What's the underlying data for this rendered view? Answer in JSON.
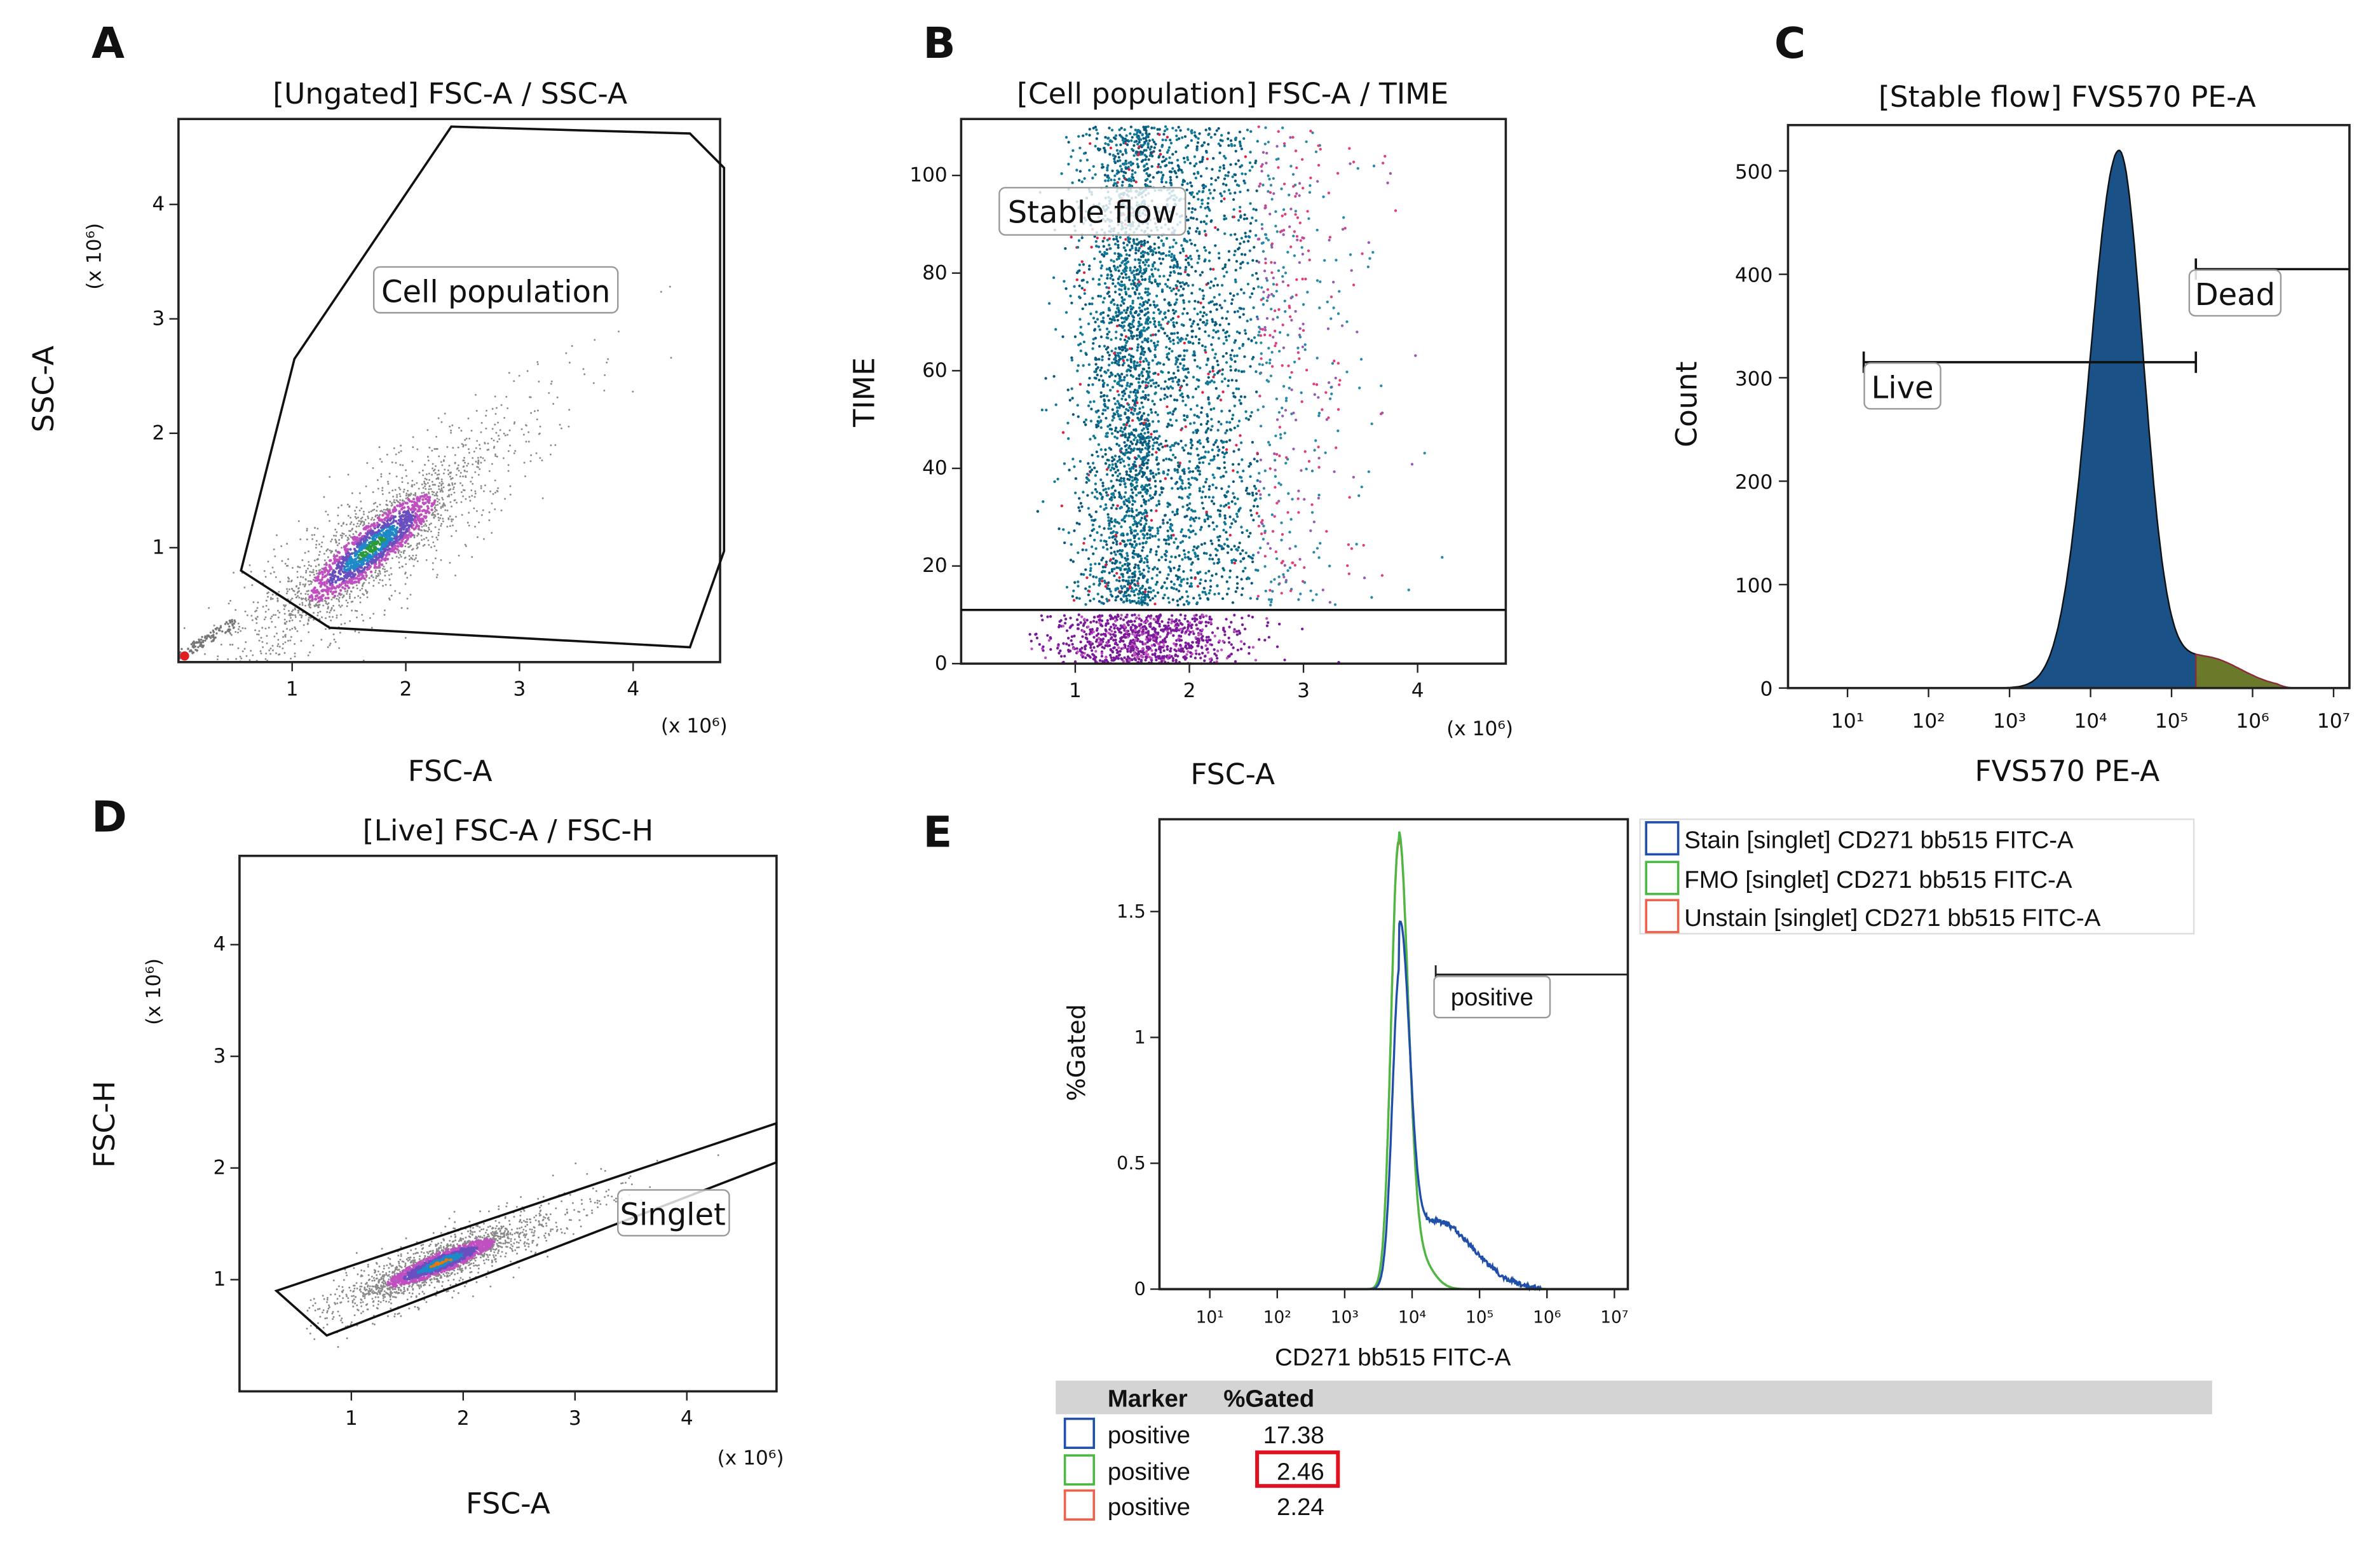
{
  "panels": {
    "A": {
      "letter": "A",
      "title": "[Ungated] FSC-A / SSC-A",
      "xlabel": "FSC-A",
      "ylabel": "SSC-A",
      "x_multiplier": "(x 10⁶)",
      "y_multiplier": "(x 10⁶)",
      "gate_label": "Cell population"
    },
    "B": {
      "letter": "B",
      "title": "[Cell population] FSC-A / TIME",
      "xlabel": "FSC-A",
      "ylabel": "TIME",
      "x_multiplier": "(x 10⁶)",
      "gate_label": "Stable flow"
    },
    "C": {
      "letter": "C",
      "title": "[Stable flow] FVS570 PE-A",
      "xlabel": "FVS570 PE-A",
      "ylabel": "Count",
      "gate_live": "Live",
      "gate_dead": "Dead"
    },
    "D": {
      "letter": "D",
      "title": "[Live] FSC-A / FSC-H",
      "xlabel": "FSC-A",
      "ylabel": "FSC-H",
      "x_multiplier": "(x 10⁶)",
      "y_multiplier": "(x 10⁶)",
      "gate_label": "Singlet"
    },
    "E": {
      "letter": "E",
      "xlabel": "CD271 bb515 FITC-A",
      "ylabel": "%Gated",
      "gate_label": "positive",
      "legend": [
        {
          "label": "Stain [singlet] CD271 bb515 FITC-A",
          "color": "#1f4fa8"
        },
        {
          "label": "FMO [singlet] CD271 bb515 FITC-A",
          "color": "#4cb944"
        },
        {
          "label": "Unstain [singlet] CD271 bb515 FITC-A",
          "color": "#f0604a"
        }
      ],
      "table": {
        "headers": [
          "Marker",
          "%Gated"
        ],
        "rows": [
          {
            "marker": "positive",
            "value": "17.38",
            "color": "#1f4fa8",
            "highlight": false
          },
          {
            "marker": "positive",
            "value": "2.46",
            "color": "#4cb944",
            "highlight": true
          },
          {
            "marker": "positive",
            "value": "2.24",
            "color": "#f0604a",
            "highlight": false
          }
        ],
        "highlight_color": "#e0101e"
      }
    }
  },
  "chart_data": [
    {
      "panel": "A",
      "type": "scatter",
      "title": "[Ungated] FSC-A / SSC-A",
      "xlabel": "FSC-A (x 10⁶)",
      "ylabel": "SSC-A (x 10⁶)",
      "xlim": [
        0,
        4.8
      ],
      "ylim": [
        0,
        4.7
      ],
      "xticks": [
        "1",
        "2",
        "3",
        "4"
      ],
      "yticks": [
        "1",
        "2",
        "3",
        "4"
      ],
      "population_center": [
        1.7,
        1.0
      ],
      "gate": {
        "name": "Cell population",
        "polygon": [
          [
            0.55,
            0.8
          ],
          [
            1.02,
            2.65
          ],
          [
            2.4,
            4.68
          ],
          [
            4.5,
            4.62
          ],
          [
            4.8,
            4.32
          ],
          [
            4.8,
            0.97
          ],
          [
            4.5,
            0.13
          ],
          [
            1.33,
            0.3
          ]
        ]
      }
    },
    {
      "panel": "B",
      "type": "scatter",
      "title": "[Cell population] FSC-A / TIME",
      "xlabel": "FSC-A (x 10⁶)",
      "ylabel": "TIME",
      "xlim": [
        0,
        4.8
      ],
      "ylim": [
        0,
        110
      ],
      "xticks": [
        "1",
        "2",
        "3",
        "4"
      ],
      "yticks": [
        "0",
        "20",
        "40",
        "60",
        "80",
        "100"
      ],
      "gate": {
        "name": "Stable flow",
        "time_min": 11
      }
    },
    {
      "panel": "C",
      "type": "area",
      "title": "[Stable flow] FVS570 PE-A",
      "xlabel": "FVS570 PE-A",
      "ylabel": "Count",
      "xscale": "log",
      "xlim": [
        1,
        7.2
      ],
      "ylim": [
        0,
        540
      ],
      "xticks": [
        "10¹",
        "10²",
        "10³",
        "10⁴",
        "10⁵",
        "10⁶",
        "10⁷"
      ],
      "yticks": [
        "0",
        "100",
        "200",
        "300",
        "400",
        "500"
      ],
      "peak_log10": 4.35,
      "peak_count": 518,
      "gates": [
        {
          "name": "Live",
          "range_log10": [
            1.2,
            5.3
          ],
          "level": 315
        },
        {
          "name": "Dead",
          "range_log10": [
            5.3,
            7.2
          ],
          "level": 405
        }
      ]
    },
    {
      "panel": "D",
      "type": "scatter",
      "title": "[Live] FSC-A / FSC-H",
      "xlabel": "FSC-A (x 10⁶)",
      "ylabel": "FSC-H (x 10⁶)",
      "xlim": [
        0,
        4.8
      ],
      "ylim": [
        0,
        4.8
      ],
      "xticks": [
        "1",
        "2",
        "3",
        "4"
      ],
      "yticks": [
        "1",
        "2",
        "3",
        "4"
      ],
      "population_center": [
        1.8,
        1.15
      ],
      "gate": {
        "name": "Singlet",
        "polygon": [
          [
            0.33,
            0.9
          ],
          [
            4.8,
            2.4
          ],
          [
            4.8,
            2.05
          ],
          [
            0.78,
            0.5
          ]
        ]
      }
    },
    {
      "panel": "E",
      "type": "line",
      "xlabel": "CD271 bb515 FITC-A",
      "ylabel": "%Gated",
      "xscale": "log",
      "xlim": [
        0.25,
        7.2
      ],
      "ylim": [
        0,
        1.85
      ],
      "xticks": [
        "10¹",
        "10²",
        "10³",
        "10⁴",
        "10⁵",
        "10⁶",
        "10⁷"
      ],
      "yticks": [
        "0",
        "0.5",
        "1",
        "1.5"
      ],
      "series": [
        {
          "name": "Stain",
          "peak_log10": 3.82,
          "peak": 1.29,
          "tail": true,
          "percent_positive": 17.38
        },
        {
          "name": "FMO",
          "peak_log10": 3.8,
          "peak": 1.78,
          "tail": false,
          "percent_positive": 2.46
        },
        {
          "name": "Unstain",
          "peak_log10": 3.8,
          "peak": 1.77,
          "tail": false,
          "percent_positive": 2.24
        }
      ],
      "gate": {
        "name": "positive",
        "range_log10": [
          4.35,
          7.2
        ],
        "level": 1.25
      }
    }
  ]
}
